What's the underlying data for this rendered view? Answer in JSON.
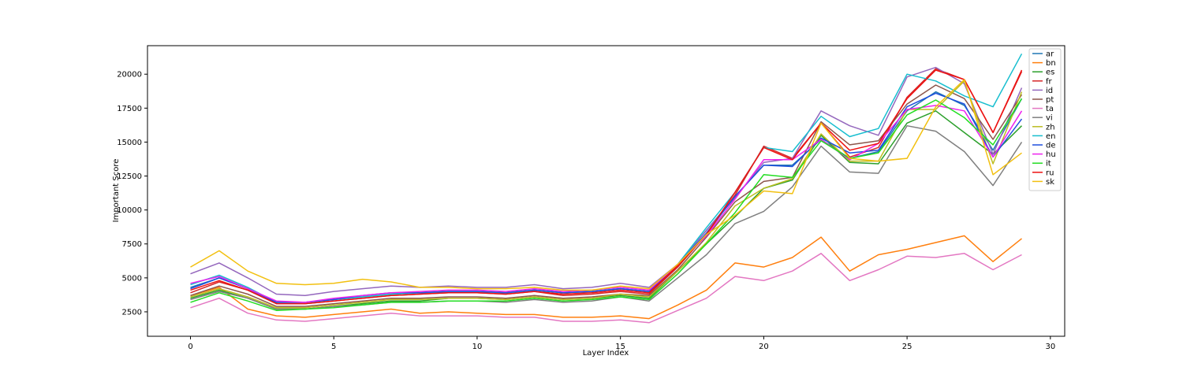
{
  "chart_data": {
    "type": "line",
    "title": "",
    "xlabel": "Layer Index",
    "ylabel": "Important Score",
    "xlim": [
      -1.5,
      30.5
    ],
    "ylim": [
      700,
      22100
    ],
    "xticks": [
      0,
      5,
      10,
      15,
      20,
      25,
      30
    ],
    "yticks": [
      2500,
      5000,
      7500,
      10000,
      12500,
      15000,
      17500,
      20000
    ],
    "grid": false,
    "legend": "top-right",
    "x": [
      0,
      1,
      2,
      3,
      4,
      5,
      6,
      7,
      8,
      9,
      10,
      11,
      12,
      13,
      14,
      15,
      16,
      17,
      18,
      19,
      20,
      21,
      22,
      23,
      24,
      25,
      26,
      27,
      28,
      29
    ],
    "series": [
      {
        "name": "ar",
        "color": "#1f77b4",
        "values": [
          4300,
          5000,
          4200,
          3200,
          3200,
          3400,
          3600,
          3800,
          3900,
          4000,
          4000,
          3900,
          4100,
          3900,
          4000,
          4200,
          4000,
          6000,
          8500,
          11000,
          13300,
          13300,
          15200,
          13800,
          14300,
          17300,
          18700,
          17700,
          14400,
          18200
        ]
      },
      {
        "name": "bn",
        "color": "#ff7f0e",
        "values": [
          3700,
          4300,
          2700,
          2200,
          2100,
          2300,
          2500,
          2700,
          2400,
          2500,
          2400,
          2300,
          2300,
          2100,
          2100,
          2200,
          2000,
          3000,
          4100,
          6100,
          5800,
          6500,
          8000,
          5500,
          6700,
          7100,
          7600,
          8100,
          6200,
          7900
        ]
      },
      {
        "name": "es",
        "color": "#2ca02c",
        "values": [
          3500,
          4100,
          3500,
          2700,
          2700,
          2900,
          3100,
          3300,
          3300,
          3500,
          3500,
          3400,
          3600,
          3400,
          3500,
          3700,
          3500,
          5500,
          7500,
          9500,
          11600,
          12200,
          15500,
          13500,
          13400,
          16400,
          17300,
          15700,
          14100,
          16200
        ]
      },
      {
        "name": "fr",
        "color": "#d62728",
        "values": [
          3900,
          4700,
          4100,
          3100,
          3100,
          3300,
          3500,
          3700,
          3800,
          3900,
          3900,
          3800,
          4000,
          3700,
          3800,
          4000,
          3800,
          5800,
          8200,
          11100,
          14700,
          13800,
          16400,
          13900,
          14600,
          18300,
          20400,
          19600,
          15700,
          20200
        ]
      },
      {
        "name": "id",
        "color": "#9467bd",
        "values": [
          5300,
          6100,
          5000,
          3800,
          3700,
          4000,
          4200,
          4400,
          4300,
          4400,
          4300,
          4300,
          4500,
          4200,
          4300,
          4600,
          4300,
          6000,
          8500,
          10900,
          13500,
          13800,
          17300,
          16200,
          15500,
          19800,
          20500,
          19300,
          14100,
          19000
        ]
      },
      {
        "name": "pt",
        "color": "#8c564b",
        "values": [
          3700,
          4400,
          3800,
          2900,
          2900,
          3100,
          3300,
          3500,
          3500,
          3600,
          3600,
          3500,
          3700,
          3500,
          3600,
          3800,
          3700,
          5600,
          8000,
          10600,
          12100,
          12400,
          16500,
          14800,
          15100,
          17800,
          19200,
          18200,
          15200,
          18500
        ]
      },
      {
        "name": "ta",
        "color": "#e377c2",
        "values": [
          2800,
          3500,
          2400,
          1900,
          1800,
          2000,
          2200,
          2400,
          2200,
          2200,
          2200,
          2100,
          2100,
          1800,
          1800,
          1900,
          1700,
          2600,
          3500,
          5100,
          4800,
          5500,
          6800,
          4800,
          5600,
          6600,
          6500,
          6800,
          5600,
          6700
        ]
      },
      {
        "name": "vi",
        "color": "#7f7f7f",
        "values": [
          3400,
          4000,
          3500,
          2700,
          2700,
          2900,
          3000,
          3200,
          3200,
          3300,
          3300,
          3200,
          3400,
          3200,
          3300,
          3600,
          3300,
          5000,
          6700,
          9000,
          9900,
          11700,
          14700,
          12800,
          12700,
          16200,
          15800,
          14300,
          11800,
          15000
        ]
      },
      {
        "name": "zh",
        "color": "#bcbd22",
        "values": [
          3600,
          4200,
          3600,
          2800,
          2800,
          3000,
          3200,
          3400,
          3400,
          3500,
          3500,
          3400,
          3600,
          3400,
          3500,
          3800,
          3600,
          5500,
          7600,
          10300,
          11600,
          12300,
          15600,
          13600,
          13600,
          17400,
          17400,
          19500,
          13400,
          18700
        ]
      },
      {
        "name": "en",
        "color": "#17becf",
        "values": [
          4500,
          5200,
          4300,
          3200,
          3200,
          3400,
          3600,
          3800,
          3900,
          4000,
          4000,
          3900,
          4100,
          3900,
          4000,
          4200,
          4000,
          6000,
          8700,
          11300,
          14600,
          14300,
          16900,
          15400,
          16000,
          20000,
          19500,
          18400,
          17600,
          21500
        ]
      },
      {
        "name": "de",
        "color": "#1f4fdd",
        "values": [
          4200,
          5000,
          4200,
          3200,
          3200,
          3400,
          3700,
          3900,
          3900,
          4000,
          4000,
          3900,
          4100,
          3900,
          4000,
          4200,
          4000,
          6000,
          8300,
          11000,
          13300,
          13200,
          15300,
          14200,
          14400,
          17600,
          18600,
          17800,
          13900,
          16700
        ]
      },
      {
        "name": "hu",
        "color": "#ee22ee",
        "values": [
          4600,
          5100,
          4200,
          3300,
          3200,
          3500,
          3700,
          3900,
          4000,
          4100,
          4100,
          4000,
          4200,
          4000,
          4100,
          4300,
          4100,
          6000,
          8100,
          10800,
          13700,
          13700,
          15200,
          13700,
          14900,
          17400,
          17700,
          17300,
          13900,
          17300
        ]
      },
      {
        "name": "it",
        "color": "#22dd22",
        "values": [
          3200,
          3900,
          3300,
          2600,
          2700,
          2800,
          3000,
          3200,
          3200,
          3300,
          3300,
          3300,
          3500,
          3300,
          3400,
          3600,
          3400,
          5300,
          7500,
          9800,
          12600,
          12400,
          15100,
          13800,
          14200,
          17000,
          18100,
          16800,
          14800,
          18200
        ]
      },
      {
        "name": "ru",
        "color": "#ee1111",
        "values": [
          4100,
          4800,
          4100,
          3100,
          3100,
          3300,
          3500,
          3700,
          3800,
          3900,
          3900,
          3800,
          4000,
          3800,
          3900,
          4100,
          3900,
          5900,
          8200,
          11300,
          14600,
          13700,
          16400,
          14400,
          14900,
          18200,
          20300,
          19600,
          15700,
          20300
        ]
      },
      {
        "name": "sk",
        "color": "#f2c010",
        "values": [
          5800,
          7000,
          5500,
          4600,
          4500,
          4600,
          4900,
          4700,
          4300,
          4300,
          4200,
          4200,
          4300,
          4100,
          4100,
          4400,
          4200,
          6000,
          8200,
          9600,
          11400,
          11200,
          16400,
          13800,
          13600,
          13800,
          17600,
          19600,
          12600,
          14200
        ]
      }
    ]
  }
}
